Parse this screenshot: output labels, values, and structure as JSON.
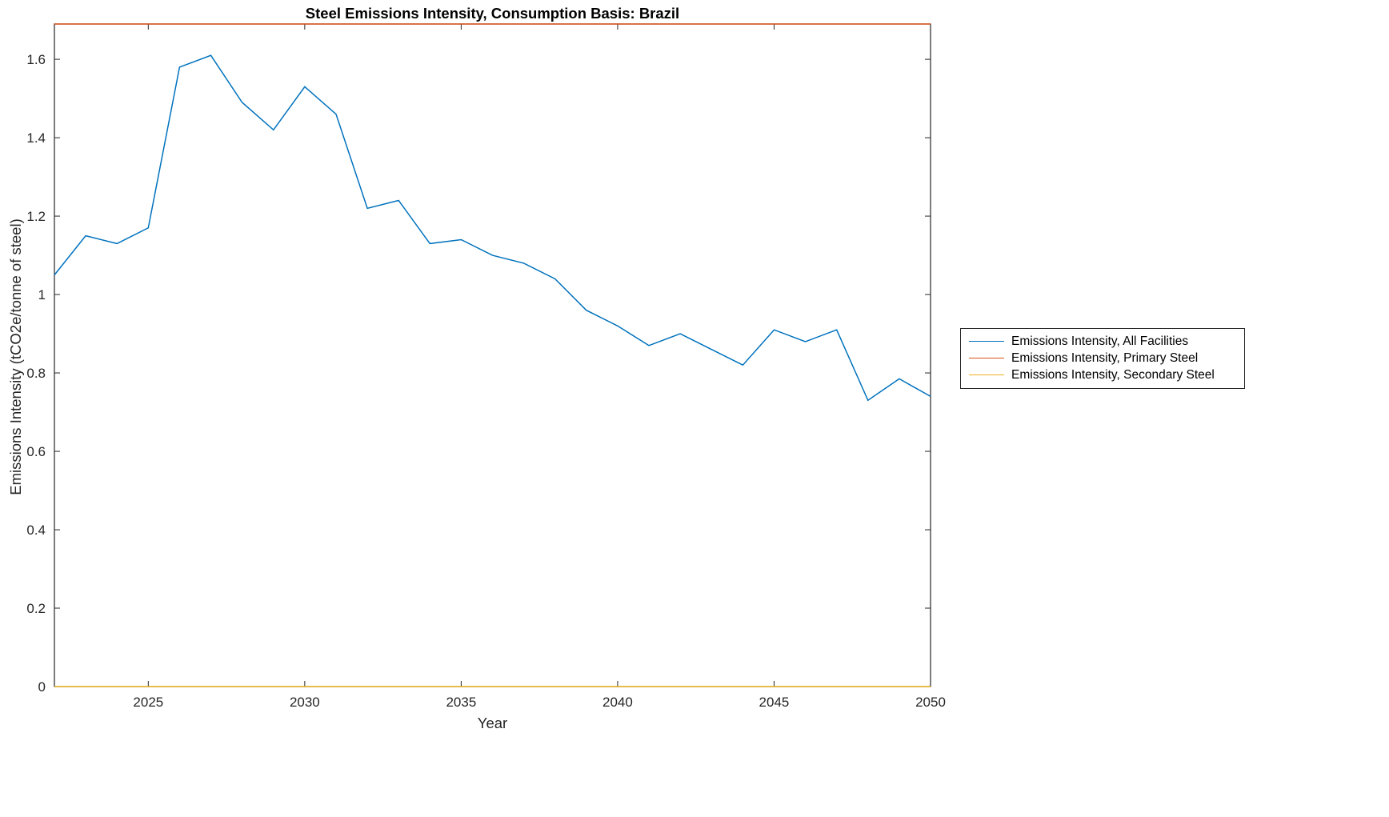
{
  "chart_data": {
    "type": "line",
    "title": "Steel Emissions Intensity, Consumption Basis: Brazil",
    "xlabel": "Year",
    "ylabel": "Emissions Intensity (tCO2e/tonne of steel)",
    "xlim": [
      2022,
      2050
    ],
    "ylim": [
      0,
      1.69
    ],
    "xticks": [
      2025,
      2030,
      2035,
      2040,
      2045,
      2050
    ],
    "yticks": [
      0,
      0.2,
      0.4,
      0.6,
      0.8,
      1,
      1.2,
      1.4,
      1.6
    ],
    "grid": false,
    "legend_position": "outside-right",
    "axis_color": "#262626",
    "x": [
      2022,
      2023,
      2024,
      2025,
      2026,
      2027,
      2028,
      2029,
      2030,
      2031,
      2032,
      2033,
      2034,
      2035,
      2036,
      2037,
      2038,
      2039,
      2040,
      2041,
      2042,
      2043,
      2044,
      2045,
      2046,
      2047,
      2048,
      2049,
      2050
    ],
    "series": [
      {
        "name": "Emissions Intensity, All Facilities",
        "color": "#0072BD",
        "values": [
          1.05,
          1.15,
          1.13,
          1.17,
          1.58,
          1.61,
          1.49,
          1.42,
          1.53,
          1.46,
          1.22,
          1.24,
          1.13,
          1.14,
          1.1,
          1.08,
          1.04,
          0.96,
          0.92,
          0.87,
          0.9,
          0.86,
          0.82,
          0.91,
          0.88,
          0.91,
          0.73,
          0.785,
          0.74
        ]
      },
      {
        "name": "Emissions Intensity, Primary Steel",
        "color": "#D95319",
        "values": [
          1.69,
          1.69,
          1.69,
          1.69,
          1.69,
          1.69,
          1.69,
          1.69,
          1.69,
          1.69,
          1.69,
          1.69,
          1.69,
          1.69,
          1.69,
          1.69,
          1.69,
          1.69,
          1.69,
          1.69,
          1.69,
          1.69,
          1.69,
          1.69,
          1.69,
          1.69,
          1.69,
          1.69,
          1.69
        ]
      },
      {
        "name": "Emissions Intensity, Secondary Steel",
        "color": "#EDB120",
        "values": [
          0,
          0,
          0,
          0,
          0,
          0,
          0,
          0,
          0,
          0,
          0,
          0,
          0,
          0,
          0,
          0,
          0,
          0,
          0,
          0,
          0,
          0,
          0,
          0,
          0,
          0,
          0,
          0,
          0
        ]
      }
    ]
  }
}
